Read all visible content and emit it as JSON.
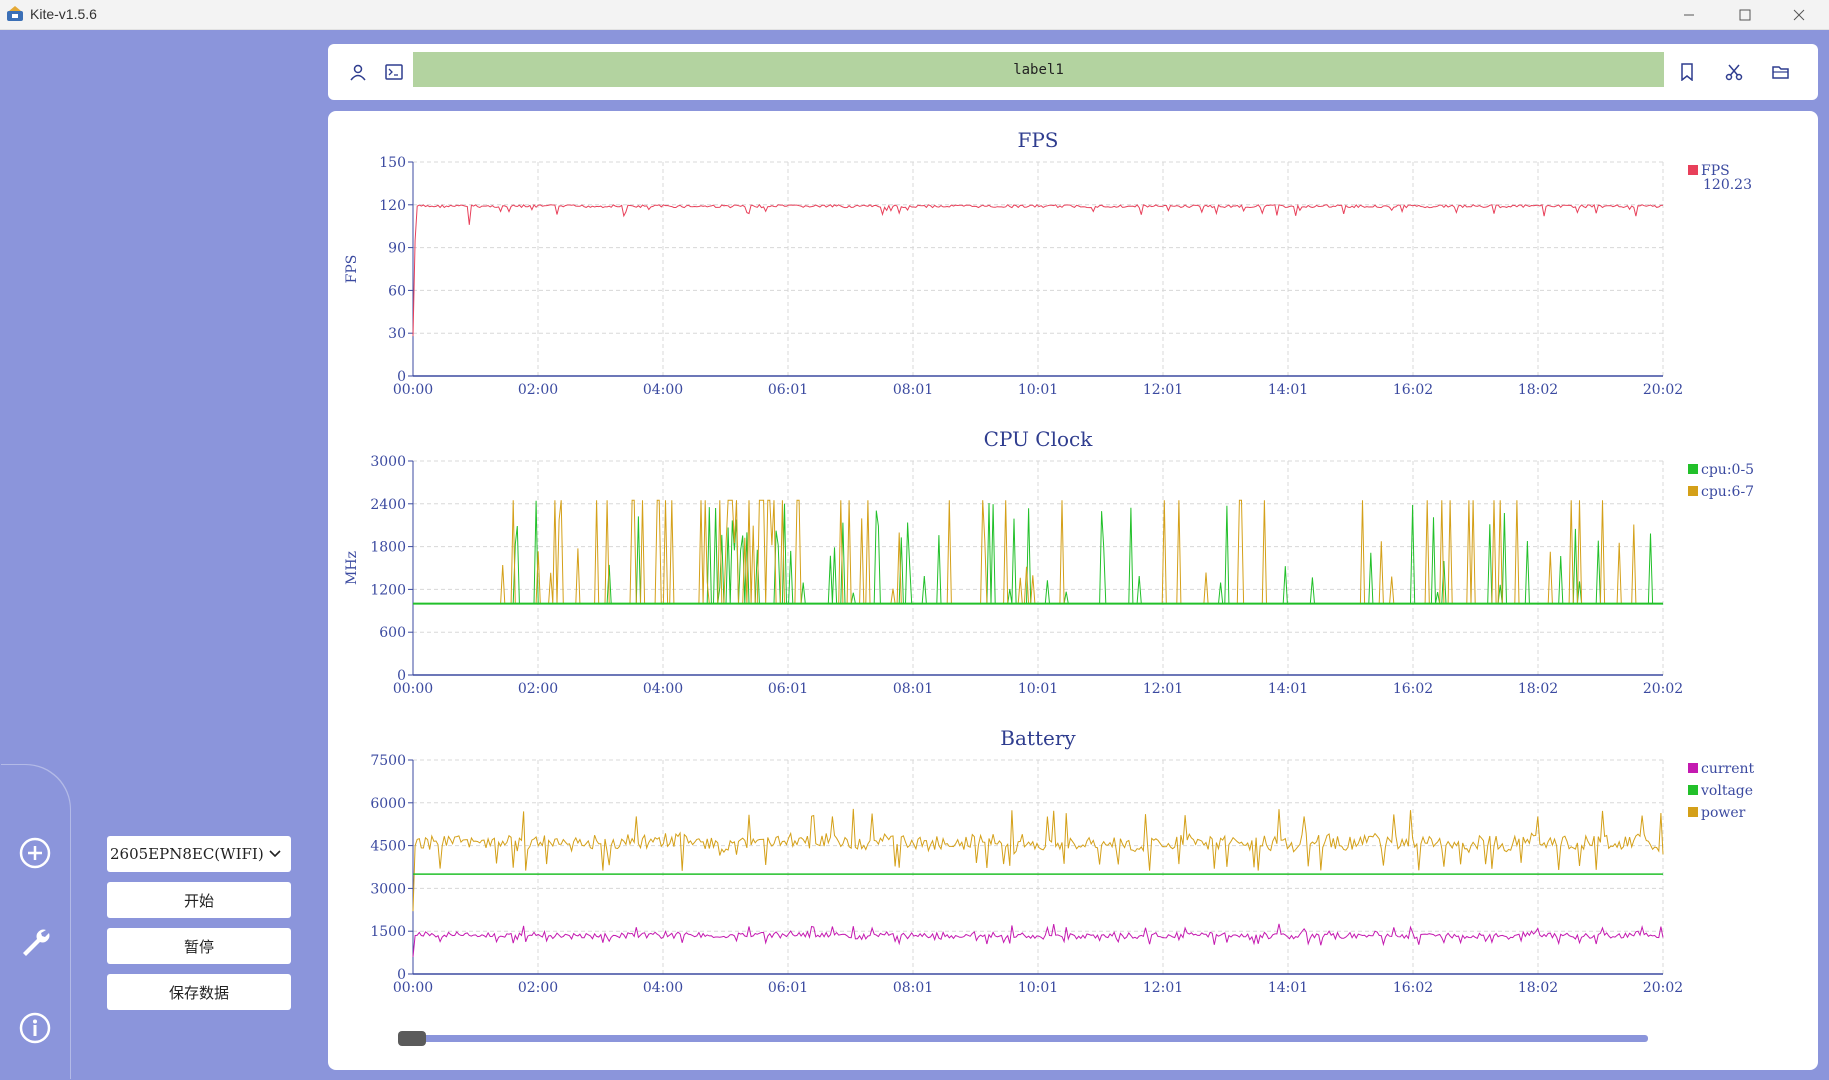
{
  "window": {
    "title": "Kite-v1.5.6"
  },
  "toolbar": {
    "label": "label1"
  },
  "controls": {
    "device": "2605EPN8EC(WIFI)",
    "start_label": "开始",
    "pause_label": "暂停",
    "save_label": "保存数据"
  },
  "colors": {
    "accent": "#8b95db",
    "label_bg": "#b3d3a0",
    "fps": "#e8405a",
    "cpu05": "#22c02a",
    "cpu67": "#d4a019",
    "current": "#c41ab0",
    "voltage": "#22c02a",
    "power": "#d4a019"
  },
  "chart_data": [
    {
      "type": "line",
      "title": "FPS",
      "ylabel": "FPS",
      "ylim": [
        0,
        150
      ],
      "yticks": [
        "150",
        "120",
        "90",
        "60",
        "30",
        "0"
      ],
      "x_tick_labels": [
        "00:00",
        "02:00",
        "04:00",
        "06:01",
        "08:01",
        "10:01",
        "12:01",
        "14:01",
        "16:02",
        "18:02",
        "20:02"
      ],
      "legend_position": "top-right",
      "grid": true,
      "series": [
        {
          "name": "FPS",
          "color": "#e8405a",
          "current_value": "120.23",
          "level": 120,
          "start": 28
        }
      ]
    },
    {
      "type": "line",
      "title": "CPU Clock",
      "ylabel": "MHz",
      "ylim": [
        0,
        3000
      ],
      "yticks": [
        "3000",
        "2400",
        "1800",
        "1200",
        "600",
        "0"
      ],
      "x_tick_labels": [
        "00:00",
        "02:00",
        "04:00",
        "06:01",
        "08:01",
        "10:01",
        "12:01",
        "14:01",
        "16:02",
        "18:02",
        "20:02"
      ],
      "legend_position": "top-right",
      "grid": true,
      "series": [
        {
          "name": "cpu:0-5",
          "color": "#22c02a",
          "base": 1000,
          "peak": 2450
        },
        {
          "name": "cpu:6-7",
          "color": "#d4a019",
          "base": 1000,
          "peak": 2450
        }
      ]
    },
    {
      "type": "line",
      "title": "Battery",
      "ylim": [
        0,
        7500
      ],
      "yticks": [
        "7500",
        "6000",
        "4500",
        "3000",
        "1500",
        "0"
      ],
      "x_tick_labels": [
        "00:00",
        "02:00",
        "04:00",
        "06:01",
        "08:01",
        "10:01",
        "12:01",
        "14:01",
        "16:02",
        "18:02",
        "20:02"
      ],
      "legend_position": "top-right",
      "grid": true,
      "series": [
        {
          "name": "current",
          "color": "#c41ab0",
          "level": 1350
        },
        {
          "name": "voltage",
          "color": "#22c02a",
          "level": 3500
        },
        {
          "name": "power",
          "color": "#d4a019",
          "level": 4600
        }
      ]
    }
  ]
}
